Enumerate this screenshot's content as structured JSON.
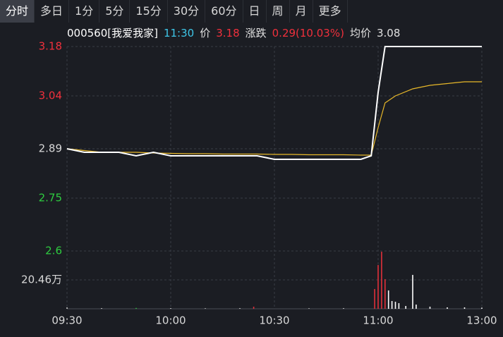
{
  "tabs": [
    "分时",
    "多日",
    "1分",
    "5分",
    "15分",
    "30分",
    "60分",
    "日",
    "周",
    "月",
    "更多"
  ],
  "info": {
    "code": "000560[我爱我家]",
    "time": "11:30",
    "price_label": "价",
    "price": "3.18",
    "change_label": "涨跌",
    "change": "0.29(10.03%)",
    "avg_label": "均价",
    "avg": "3.08"
  },
  "chart_data": {
    "type": "line",
    "x": [
      "09:30",
      "09:35",
      "09:40",
      "09:45",
      "09:50",
      "09:55",
      "10:00",
      "10:05",
      "10:10",
      "10:15",
      "10:20",
      "10:25",
      "10:30",
      "10:35",
      "10:40",
      "10:45",
      "10:50",
      "10:55",
      "10:58",
      "11:00",
      "11:02",
      "11:05",
      "11:10",
      "11:15",
      "11:20",
      "11:25",
      "11:30"
    ],
    "series": [
      {
        "color": "#ffffff",
        "values": [
          2.89,
          2.88,
          2.88,
          2.88,
          2.87,
          2.88,
          2.87,
          2.87,
          2.87,
          2.87,
          2.87,
          2.87,
          2.86,
          2.86,
          2.86,
          2.86,
          2.86,
          2.86,
          2.87,
          3.05,
          3.18,
          3.18,
          3.18,
          3.18,
          3.18,
          3.18,
          3.18
        ]
      },
      {
        "color": "#e8b829",
        "values": [
          2.89,
          2.885,
          2.88,
          2.88,
          2.88,
          2.878,
          2.877,
          2.876,
          2.876,
          2.875,
          2.875,
          2.875,
          2.874,
          2.874,
          2.873,
          2.873,
          2.873,
          2.872,
          2.872,
          2.95,
          3.02,
          3.04,
          3.06,
          3.07,
          3.075,
          3.08,
          3.08
        ]
      }
    ],
    "ylim": [
      2.6,
      3.18
    ],
    "yticks": [
      3.18,
      3.04,
      2.89,
      2.75,
      2.6
    ],
    "xticks": [
      "09:30",
      "10:00",
      "10:30",
      "11:00",
      "13:00"
    ],
    "grid": true,
    "volume": {
      "x": [
        "09:30",
        "09:40",
        "09:50",
        "10:00",
        "10:10",
        "10:20",
        "10:24",
        "10:40",
        "10:50",
        "10:59",
        "11:00",
        "11:01",
        "11:02",
        "11:03",
        "11:04",
        "11:05",
        "11:06",
        "11:08",
        "11:10",
        "11:11",
        "11:15",
        "11:20",
        "11:25",
        "11:30"
      ],
      "values": [
        1,
        0.5,
        0.6,
        0.5,
        0.4,
        0.5,
        1.5,
        0.4,
        0.5,
        14,
        31,
        40.4,
        21,
        13,
        5.5,
        5,
        4,
        2,
        24,
        3,
        1.5,
        1,
        1,
        0.8
      ],
      "colors": [
        "#cccccc",
        "#cccccc",
        "#2ecc40",
        "#cccccc",
        "#cccccc",
        "#cccccc",
        "#e0303a",
        "#cccccc",
        "#cccccc",
        "#e0303a",
        "#e0303a",
        "#e0303a",
        "#e0303a",
        "#ffffff",
        "#ffffff",
        "#ffffff",
        "#ffffff",
        "#ffffff",
        "#ffffff",
        "#ffffff",
        "#ffffff",
        "#ffffff",
        "#ffffff",
        "#ffffff"
      ],
      "ylim": [
        0,
        40.92
      ],
      "yticks": [
        {
          "value": 20.46,
          "label": "20.46万"
        }
      ]
    }
  }
}
